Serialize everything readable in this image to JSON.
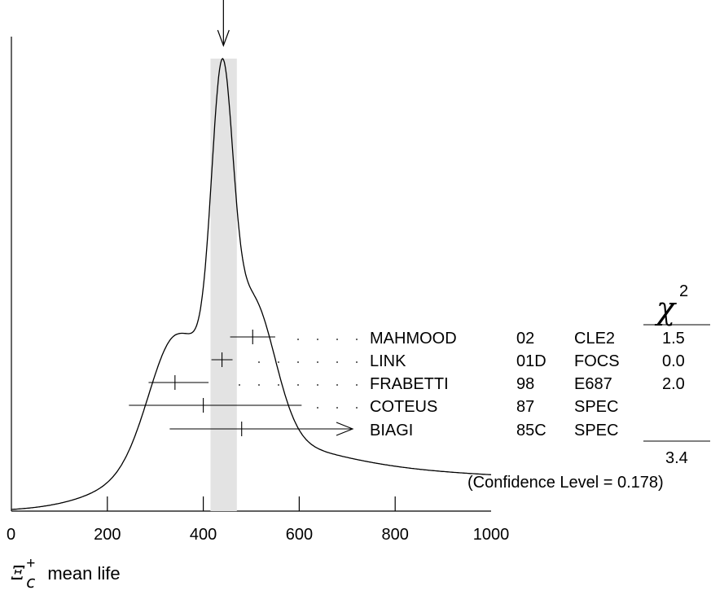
{
  "chart_data": {
    "type": "ideogram",
    "xlim": [
      0,
      1000
    ],
    "x_ticks": [
      "0",
      "200",
      "400",
      "600",
      "800",
      "1000"
    ],
    "xlabel": {
      "symbol": "Ξ",
      "sup": "+",
      "sub": "c",
      "text": "mean life"
    },
    "average": 442,
    "band": [
      415,
      470
    ],
    "measurements": [
      {
        "name": "MAHMOOD",
        "year": "02",
        "experiment": "CLE2",
        "value": 503,
        "error": [
          47,
          47
        ],
        "chi2": "1.5"
      },
      {
        "name": "LINK",
        "year": "01D",
        "experiment": "FOCS",
        "value": 439,
        "error": [
          22,
          22
        ],
        "chi2": "0.0"
      },
      {
        "name": "FRABETTI",
        "year": "98",
        "experiment": "E687",
        "value": 341,
        "error": [
          55,
          70
        ],
        "chi2": "2.0"
      },
      {
        "name": "COTEUS",
        "year": "87",
        "experiment": "SPEC",
        "value": 400,
        "error": [
          155,
          205
        ],
        "chi2": ""
      },
      {
        "name": "BIAGI",
        "year": "85C",
        "experiment": "SPEC",
        "value": 480,
        "error": [
          150,
          1000
        ],
        "chi2": "",
        "arrow": true
      }
    ],
    "chi2_header": "χ",
    "chi2_power": "2",
    "chi2_total": "3.4",
    "confidence_text": "(Confidence Level = 0.178)"
  }
}
